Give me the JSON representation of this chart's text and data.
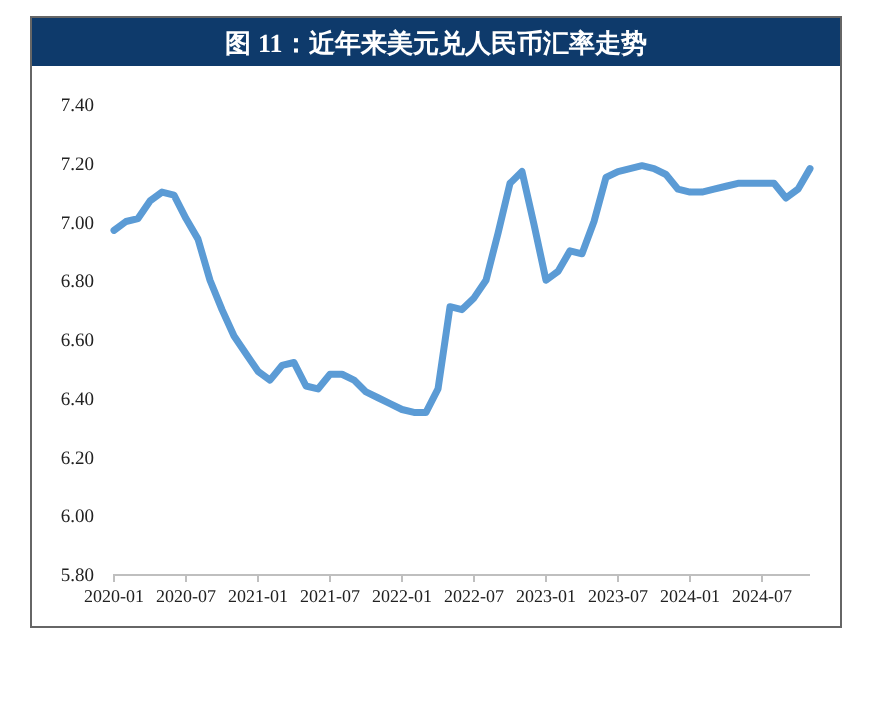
{
  "chart_data": {
    "type": "line",
    "title": "图 11：近年来美元兑人民币汇率走势",
    "x": [
      "2020-01",
      "2020-02",
      "2020-03",
      "2020-04",
      "2020-05",
      "2020-06",
      "2020-07",
      "2020-08",
      "2020-09",
      "2020-10",
      "2020-11",
      "2020-12",
      "2021-01",
      "2021-02",
      "2021-03",
      "2021-04",
      "2021-05",
      "2021-06",
      "2021-07",
      "2021-08",
      "2021-09",
      "2021-10",
      "2021-11",
      "2021-12",
      "2022-01",
      "2022-02",
      "2022-03",
      "2022-04",
      "2022-05",
      "2022-06",
      "2022-07",
      "2022-08",
      "2022-09",
      "2022-10",
      "2022-11",
      "2022-12",
      "2023-01",
      "2023-02",
      "2023-03",
      "2023-04",
      "2023-05",
      "2023-06",
      "2023-07",
      "2023-08",
      "2023-09",
      "2023-10",
      "2023-11",
      "2023-12",
      "2024-01",
      "2024-02",
      "2024-03",
      "2024-04",
      "2024-05",
      "2024-06",
      "2024-07",
      "2024-08",
      "2024-09",
      "2024-10",
      "2024-11"
    ],
    "series": [
      {
        "color": "#5b9bd5",
        "values": [
          6.97,
          7.0,
          7.01,
          7.07,
          7.1,
          7.09,
          7.01,
          6.94,
          6.8,
          6.7,
          6.61,
          6.55,
          6.49,
          6.46,
          6.51,
          6.52,
          6.44,
          6.43,
          6.48,
          6.48,
          6.46,
          6.42,
          6.4,
          6.38,
          6.36,
          6.35,
          6.35,
          6.43,
          6.71,
          6.7,
          6.74,
          6.8,
          6.96,
          7.13,
          7.17,
          6.99,
          6.8,
          6.83,
          6.9,
          6.89,
          7.0,
          7.15,
          7.17,
          7.18,
          7.19,
          7.18,
          7.16,
          7.11,
          7.1,
          7.1,
          7.11,
          7.12,
          7.13,
          7.13,
          7.13,
          7.13,
          7.08,
          7.11,
          7.18
        ]
      }
    ],
    "xlim": [
      "2020-01",
      "2024-11"
    ],
    "xticks": [
      "2020-01",
      "2020-07",
      "2021-01",
      "2021-07",
      "2022-01",
      "2022-07",
      "2023-01",
      "2023-07",
      "2024-01",
      "2024-07"
    ],
    "ylim": [
      5.8,
      7.4
    ],
    "yticks": [
      {
        "value": 5.8,
        "label": "5.80"
      },
      {
        "value": 6.0,
        "label": "6.00"
      },
      {
        "value": 6.2,
        "label": "6.20"
      },
      {
        "value": 6.4,
        "label": "6.40"
      },
      {
        "value": 6.6,
        "label": "6.60"
      },
      {
        "value": 6.8,
        "label": "6.80"
      },
      {
        "value": 7.0,
        "label": "7.00"
      },
      {
        "value": 7.2,
        "label": "7.20"
      },
      {
        "value": 7.4,
        "label": "7.40"
      }
    ],
    "grid": false,
    "marker": "none",
    "line_style": "solid"
  }
}
